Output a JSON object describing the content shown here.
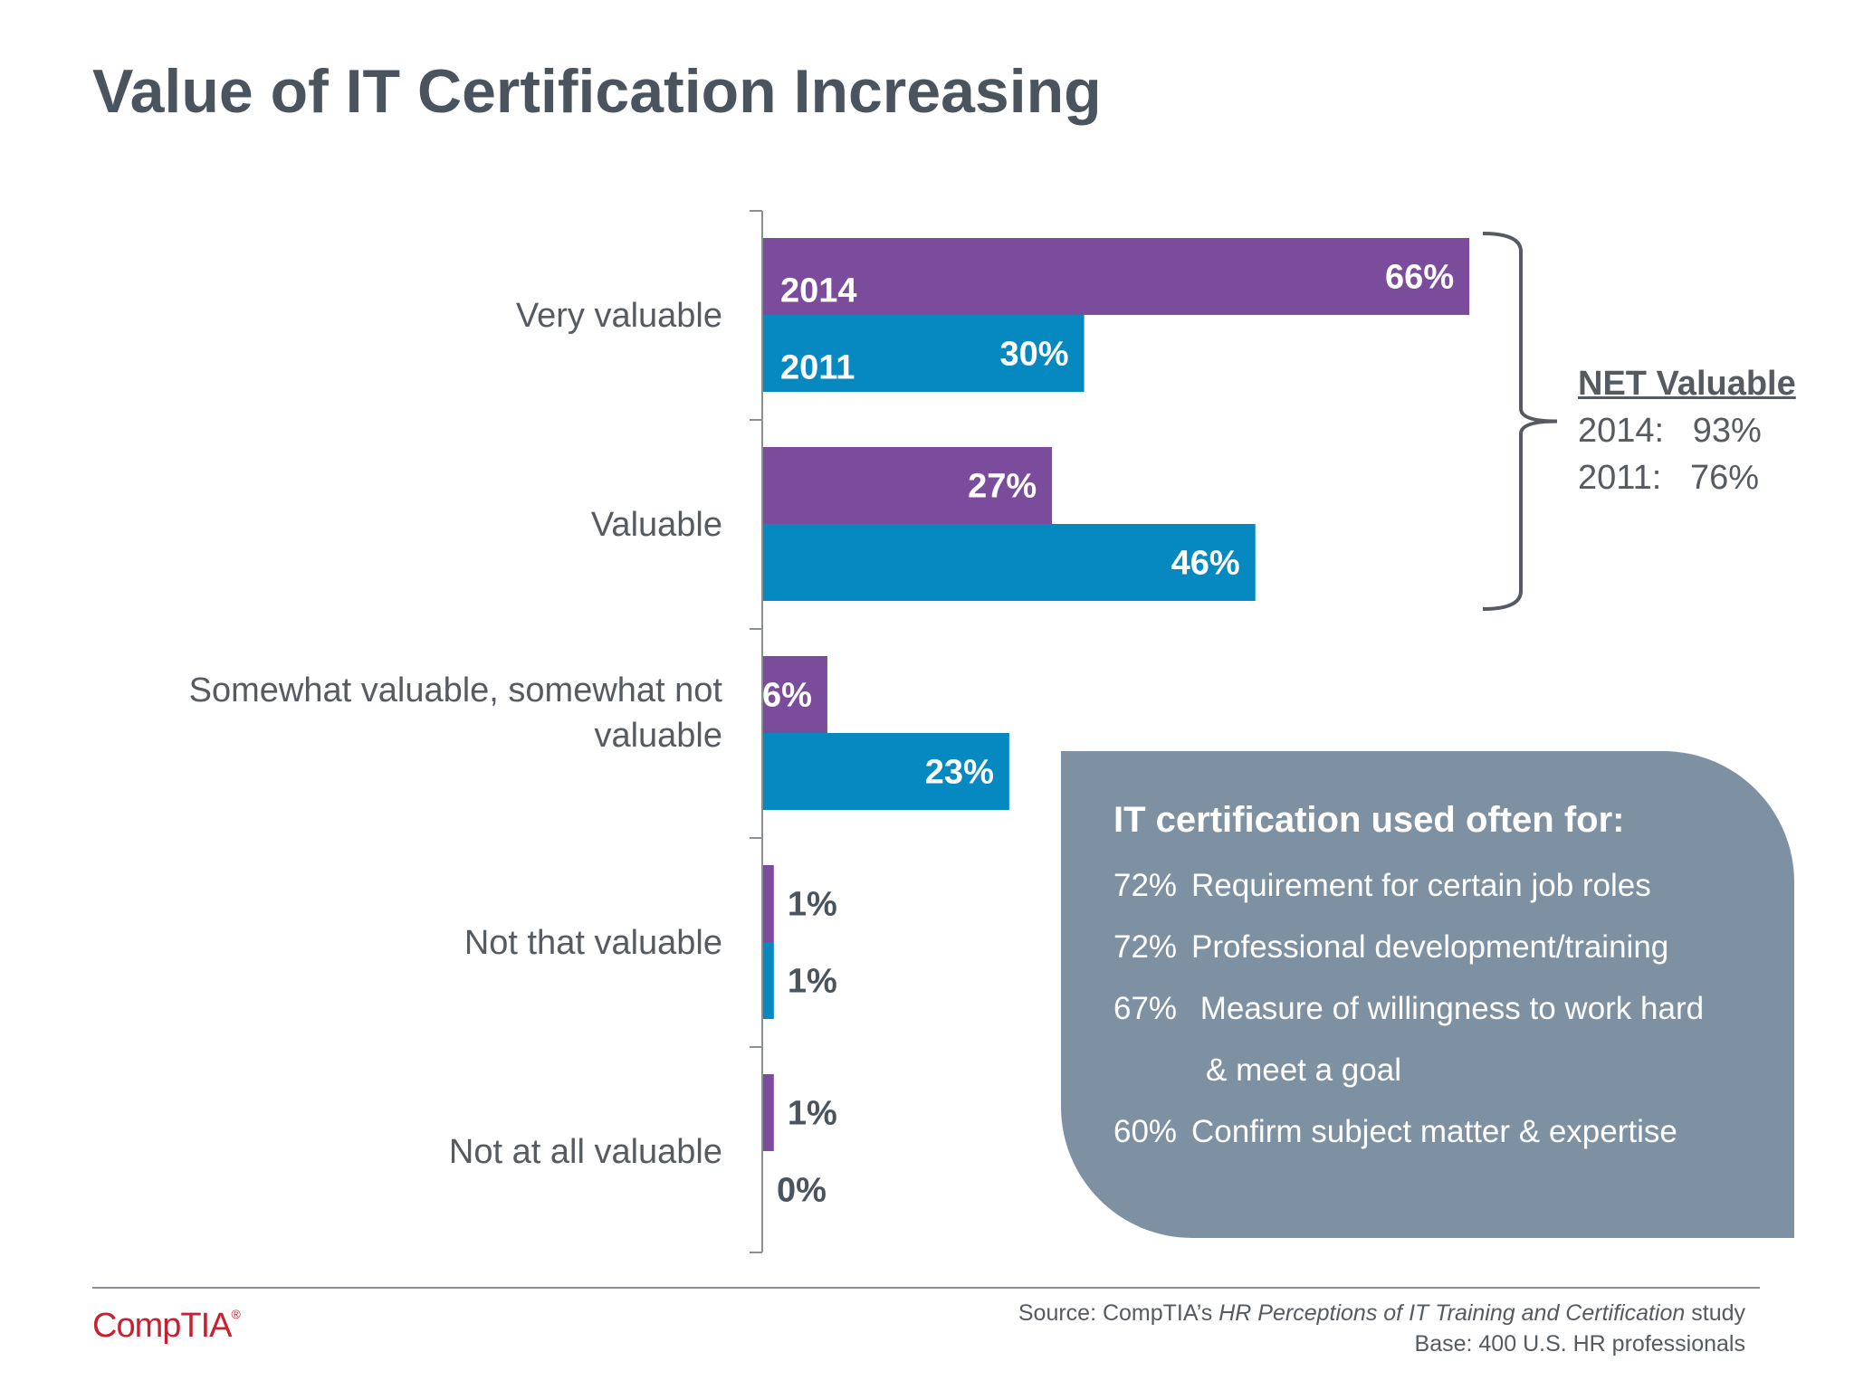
{
  "title": "Value of IT Certification Increasing",
  "chart_data": {
    "type": "bar",
    "orientation": "horizontal",
    "categories": [
      [
        "Very valuable"
      ],
      [
        "Valuable"
      ],
      [
        "Somewhat valuable, somewhat not",
        "valuable"
      ],
      [
        "Not that valuable"
      ],
      [
        "Not at all valuable"
      ]
    ],
    "series": [
      {
        "name": "2014",
        "values": [
          66,
          27,
          6,
          1,
          1
        ],
        "color": "#7b4c9c"
      },
      {
        "name": "2011",
        "values": [
          30,
          46,
          23,
          1,
          0
        ],
        "color": "#0688c0"
      }
    ],
    "value_suffix": "%",
    "xlim": [
      0,
      100
    ],
    "grid": false
  },
  "net": {
    "title": "NET Valuable",
    "rows": [
      "2014:   93%",
      "2011:   76%"
    ]
  },
  "info": {
    "title": "IT certification used often for:",
    "items": [
      {
        "pct": "72%",
        "text": "Requirement for certain job roles"
      },
      {
        "pct": "72%",
        "text": "Professional development/training"
      },
      {
        "pct": "67%",
        "text": " Measure of willingness to work hard"
      },
      {
        "pct": "",
        "text": "& meet a goal"
      },
      {
        "pct": "60%",
        "text": "Confirm subject matter & expertise"
      }
    ]
  },
  "footer": {
    "logo": "CompTIA",
    "source_prefix": "Source: CompTIA’s ",
    "source_title": "HR Perceptions of IT Training and Certification",
    "source_suffix": " study",
    "base": "Base: 400 U.S. HR professionals"
  },
  "colors": {
    "series_2014": "#7b4c9c",
    "series_2011": "#0688c0",
    "panel": "#7d91a3",
    "title": "#4a545e",
    "logo": "#c8202f"
  }
}
